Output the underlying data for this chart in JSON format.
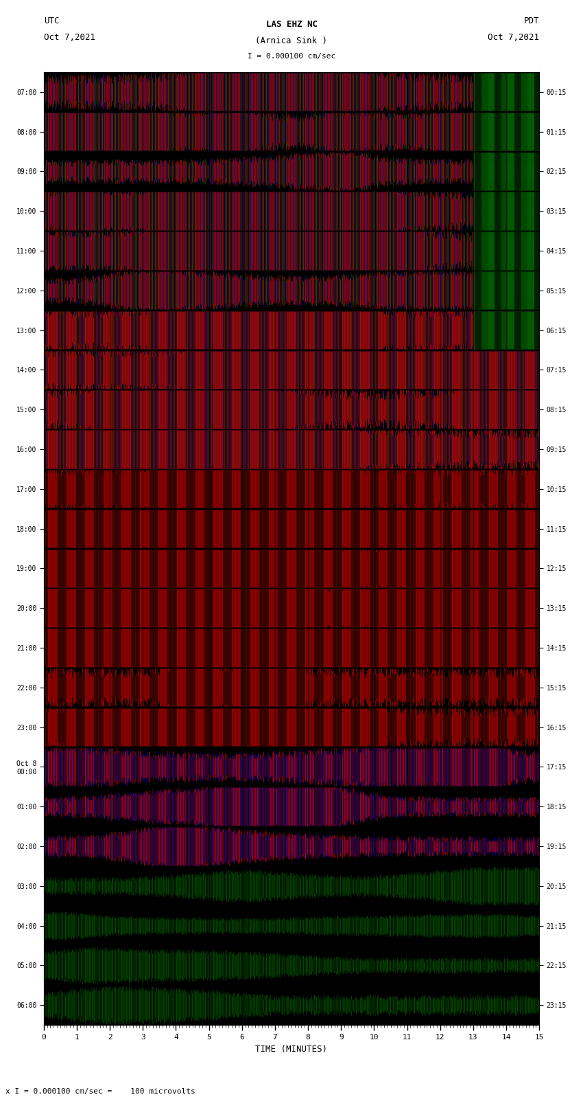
{
  "title_line1": "LAS EHZ NC",
  "title_line2": "(Arnica Sink )",
  "scale_text": "I = 0.000100 cm/sec",
  "left_label_top": "UTC",
  "left_label_date": "Oct 7,2021",
  "right_label_top": "PDT",
  "right_label_date": "Oct 7,2021",
  "left_yticks_utc": [
    "07:00",
    "08:00",
    "09:00",
    "10:00",
    "11:00",
    "12:00",
    "13:00",
    "14:00",
    "15:00",
    "16:00",
    "17:00",
    "18:00",
    "19:00",
    "20:00",
    "21:00",
    "22:00",
    "23:00",
    "Oct 8\n00:00",
    "01:00",
    "02:00",
    "03:00",
    "04:00",
    "05:00",
    "06:00"
  ],
  "right_yticks_pdt": [
    "00:15",
    "01:15",
    "02:15",
    "03:15",
    "04:15",
    "05:15",
    "06:15",
    "07:15",
    "08:15",
    "09:15",
    "10:15",
    "11:15",
    "12:15",
    "13:15",
    "14:15",
    "15:15",
    "16:15",
    "17:15",
    "18:15",
    "19:15",
    "20:15",
    "21:15",
    "22:15",
    "23:15"
  ],
  "xlabel": "TIME (MINUTES)",
  "bottom_label": "x I = 0.000100 cm/sec =    100 microvolts",
  "fig_width": 8.5,
  "fig_height": 16.13,
  "num_rows": 24,
  "xtick_max": 15,
  "seed": 42
}
